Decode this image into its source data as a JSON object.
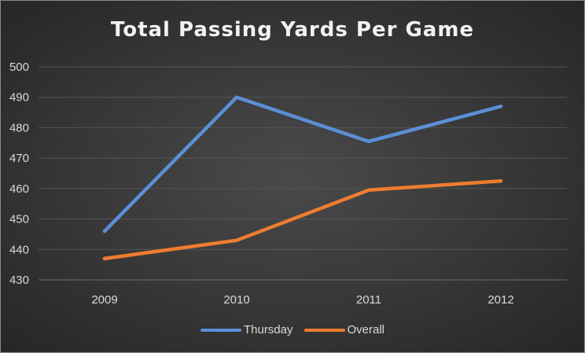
{
  "chart_data": {
    "type": "line",
    "title": "Total Passing Yards Per Game",
    "categories": [
      "2009",
      "2010",
      "2011",
      "2012"
    ],
    "series": [
      {
        "name": "Thursday",
        "color": "#5b8fd6",
        "values": [
          446,
          490,
          475.5,
          487
        ]
      },
      {
        "name": "Overall",
        "color": "#ed7d31",
        "values": [
          437,
          443,
          459.5,
          462.5
        ]
      }
    ],
    "ylim": [
      430,
      500
    ],
    "yticks": [
      430,
      440,
      450,
      460,
      470,
      480,
      490,
      500
    ],
    "grid": true,
    "legend_position": "bottom"
  }
}
